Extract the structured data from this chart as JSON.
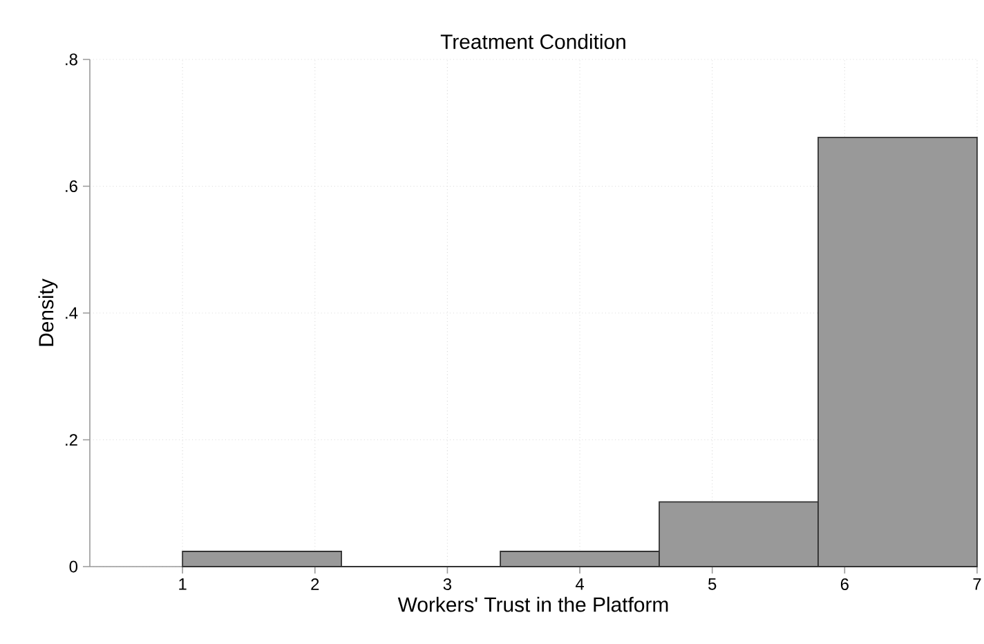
{
  "chart_data": {
    "type": "histogram",
    "title": "Treatment Condition",
    "xlabel": "Workers' Trust in the Platform",
    "ylabel": "Density",
    "bins": [
      1,
      2.2,
      3.4,
      4.6,
      5.8,
      7
    ],
    "values": [
      0.024,
      0,
      0.024,
      0.102,
      0.677
    ],
    "color": "#999999",
    "xlim": [
      0.3,
      7
    ],
    "ylim": [
      0,
      0.8
    ],
    "xticks": [
      1,
      2,
      3,
      4,
      5,
      6,
      7
    ],
    "yticks": [
      0,
      {
        "value": 0.2,
        "label": ".2"
      },
      {
        "value": 0.4,
        "label": ".4"
      },
      {
        "value": 0.6,
        "label": ".6"
      },
      {
        "value": 0.8,
        "label": ".8"
      }
    ],
    "grid": true
  }
}
